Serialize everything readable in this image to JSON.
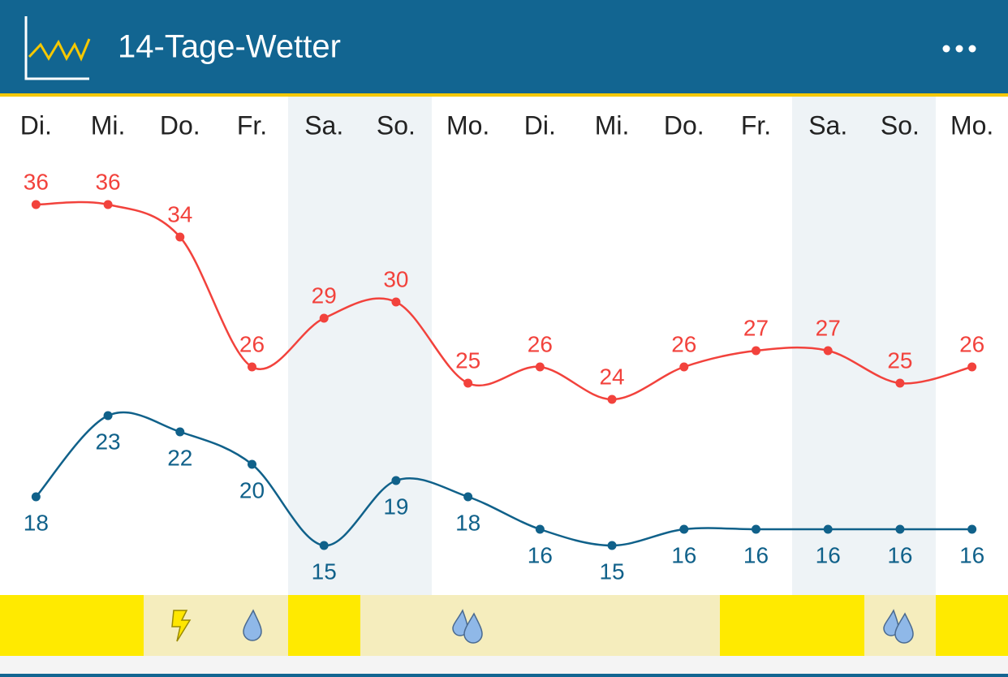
{
  "header": {
    "title": "14-Tage-Wetter"
  },
  "chart_data": {
    "type": "line",
    "categories": [
      "Di.",
      "Mi.",
      "Do.",
      "Fr.",
      "Sa.",
      "So.",
      "Mo.",
      "Di.",
      "Mi.",
      "Do.",
      "Fr.",
      "Sa.",
      "So.",
      "Mo."
    ],
    "series": [
      {
        "color": "#f2423c",
        "values": [
          36,
          36,
          34,
          26,
          29,
          30,
          25,
          26,
          24,
          26,
          27,
          27,
          25,
          26
        ]
      },
      {
        "color": "#10618a",
        "values": [
          18,
          23,
          22,
          20,
          15,
          19,
          18,
          16,
          15,
          16,
          16,
          16,
          16,
          16
        ]
      }
    ],
    "ylim": [
      12,
      42
    ]
  }
}
